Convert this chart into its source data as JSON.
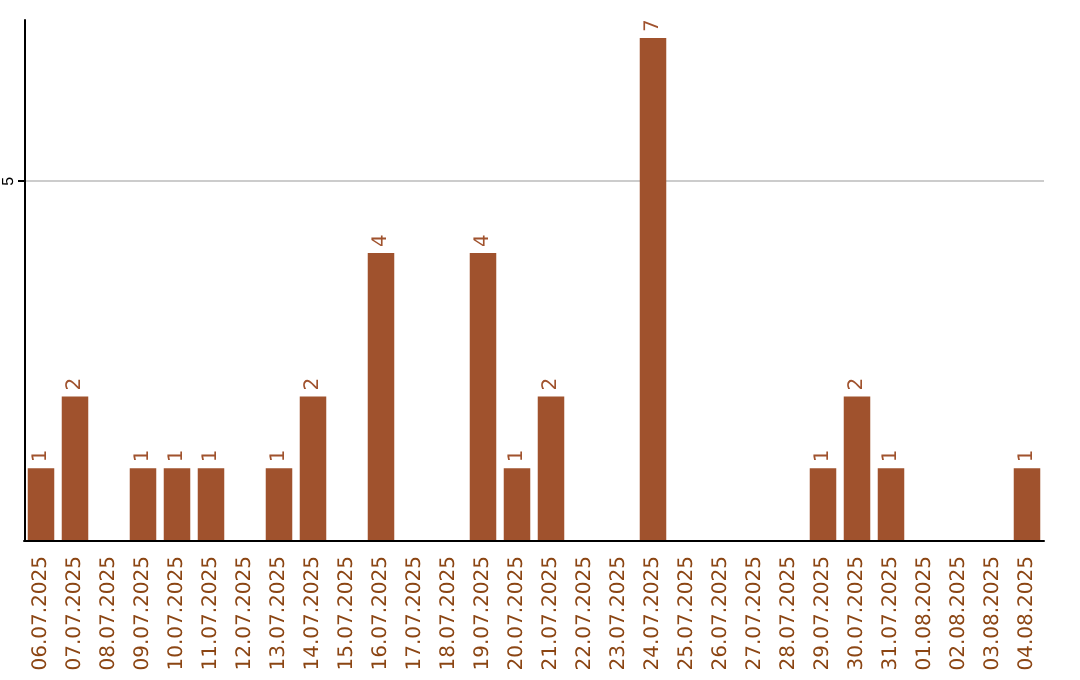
{
  "chart_data": {
    "type": "bar",
    "categories": [
      "06.07.2025",
      "07.07.2025",
      "08.07.2025",
      "09.07.2025",
      "10.07.2025",
      "11.07.2025",
      "12.07.2025",
      "13.07.2025",
      "14.07.2025",
      "15.07.2025",
      "16.07.2025",
      "17.07.2025",
      "18.07.2025",
      "19.07.2025",
      "20.07.2025",
      "21.07.2025",
      "22.07.2025",
      "23.07.2025",
      "24.07.2025",
      "25.07.2025",
      "26.07.2025",
      "27.07.2025",
      "28.07.2025",
      "29.07.2025",
      "30.07.2025",
      "31.07.2025",
      "01.08.2025",
      "02.08.2025",
      "03.08.2025",
      "04.08.2025"
    ],
    "values": [
      1,
      2,
      0,
      1,
      1,
      1,
      0,
      1,
      2,
      0,
      4,
      0,
      0,
      4,
      1,
      2,
      0,
      0,
      7,
      0,
      0,
      0,
      0,
      1,
      2,
      1,
      0,
      0,
      0,
      1
    ],
    "value_labels": [
      "1",
      "2",
      null,
      "1",
      "1",
      "1",
      null,
      "1",
      "2",
      null,
      "4",
      null,
      null,
      "4",
      "1",
      "2",
      null,
      null,
      "7",
      null,
      null,
      null,
      null,
      "1",
      "2",
      "1",
      null,
      null,
      null,
      "1"
    ],
    "color": "#a0522d",
    "ylim": [
      0,
      7.25
    ],
    "yticks": [
      5
    ],
    "grid": "y"
  }
}
